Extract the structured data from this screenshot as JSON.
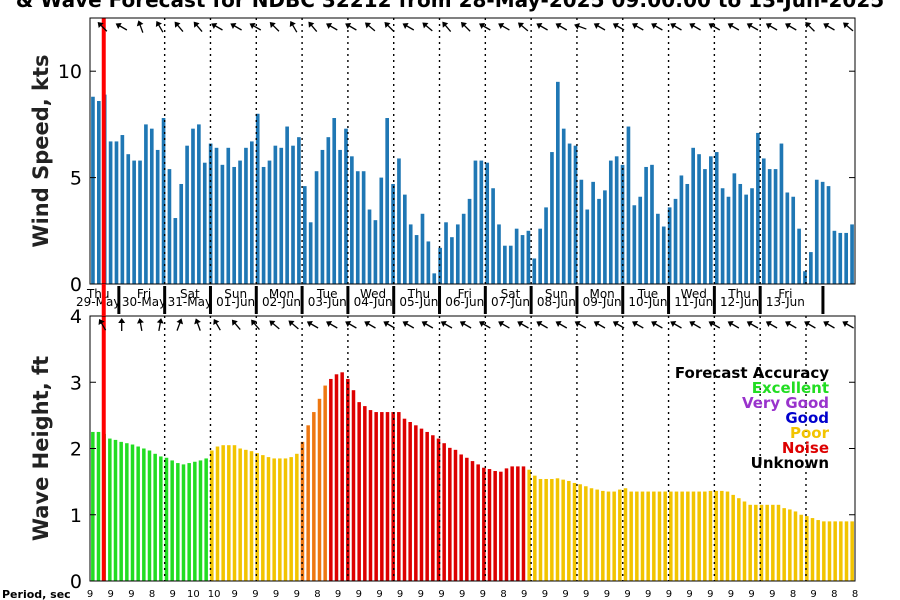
{
  "title": "& Wave Forecast for NDBC 32212 from 28-May-2025 09:00:00 to 13-Jun-2025",
  "period_label": "Period, sec",
  "colors": {
    "wind_bar": "#1f77b4",
    "now_line": "#ff0000",
    "excellent": "#22dd22",
    "very_good": "#9933cc",
    "good": "#0000cc",
    "poor": "#f2c400",
    "noise": "#dd0000",
    "unknown": "#000000",
    "orange": "#ee7711"
  },
  "legend": {
    "title": "Forecast Accuracy",
    "items": [
      {
        "label": "Excellent",
        "color": "#22dd22"
      },
      {
        "label": "Very Good",
        "color": "#9933cc"
      },
      {
        "label": "Good",
        "color": "#0000cc"
      },
      {
        "label": "Poor",
        "color": "#f2c400"
      },
      {
        "label": "Noise",
        "color": "#dd0000"
      },
      {
        "label": "Unknown",
        "color": "#000000"
      }
    ]
  },
  "chart_data": [
    {
      "type": "bar",
      "panel": "wind",
      "ylabel": "Wind Speed, kts",
      "ylim": [
        0,
        12.5
      ],
      "yticks": [
        0,
        5,
        10
      ],
      "xlim": [
        0,
        16.7
      ],
      "grid": "vertical dotted at day boundaries",
      "now_x": 0.3,
      "values": [
        8.8,
        8.6,
        8.9,
        6.7,
        6.7,
        7.0,
        6.1,
        5.8,
        5.8,
        7.5,
        7.3,
        6.3,
        7.8,
        5.4,
        3.1,
        4.7,
        6.5,
        7.3,
        7.5,
        5.7,
        6.6,
        6.4,
        5.6,
        6.4,
        5.5,
        5.8,
        6.4,
        6.7,
        8.0,
        5.5,
        5.8,
        6.5,
        6.4,
        7.4,
        6.5,
        6.9,
        4.6,
        2.9,
        5.3,
        6.3,
        6.9,
        7.8,
        6.3,
        7.3,
        6.0,
        5.3,
        5.3,
        3.5,
        3.0,
        5.0,
        7.8,
        4.7,
        5.9,
        4.2,
        2.8,
        2.3,
        3.3,
        2.0,
        0.5,
        1.7,
        2.9,
        2.2,
        2.8,
        3.3,
        4.0,
        5.8,
        5.8,
        5.7,
        4.5,
        2.8,
        1.8,
        1.8,
        2.6,
        2.3,
        2.5,
        1.2,
        2.6,
        3.6,
        6.2,
        9.5,
        7.3,
        6.6,
        6.5,
        4.9,
        3.5,
        4.8,
        4.0,
        4.4,
        5.8,
        6.0,
        5.6,
        7.4,
        3.7,
        4.1,
        5.5,
        5.6,
        3.3,
        2.7,
        3.6,
        4.0,
        5.1,
        4.7,
        6.4,
        6.1,
        5.4,
        6.0,
        6.2,
        4.5,
        4.1,
        5.2,
        4.7,
        4.2,
        4.5,
        7.1,
        5.9,
        5.4,
        5.4,
        6.6,
        4.3,
        4.1,
        2.6,
        0.6,
        1.5,
        4.9,
        4.8,
        4.6,
        2.5,
        2.4,
        2.4,
        2.8
      ]
    },
    {
      "type": "bar",
      "panel": "wave",
      "ylabel": "Wave Height, ft",
      "ylim": [
        0,
        4
      ],
      "yticks": [
        0,
        1,
        2,
        3,
        4
      ],
      "xlim": [
        0,
        16.7
      ],
      "grid": "vertical dotted at day boundaries",
      "now_x": 0.3,
      "values": [
        2.25,
        2.25,
        2.22,
        2.15,
        2.13,
        2.1,
        2.08,
        2.06,
        2.03,
        2.0,
        1.97,
        1.92,
        1.88,
        1.86,
        1.82,
        1.78,
        1.76,
        1.78,
        1.8,
        1.82,
        1.85,
        1.97,
        2.03,
        2.05,
        2.05,
        2.05,
        2.0,
        1.98,
        1.96,
        1.93,
        1.9,
        1.87,
        1.85,
        1.85,
        1.85,
        1.87,
        1.92,
        2.1,
        2.35,
        2.55,
        2.75,
        2.95,
        3.05,
        3.12,
        3.15,
        3.05,
        2.88,
        2.7,
        2.64,
        2.58,
        2.55,
        2.55,
        2.55,
        2.55,
        2.55,
        2.45,
        2.4,
        2.35,
        2.3,
        2.25,
        2.2,
        2.15,
        2.08,
        2.01,
        1.98,
        1.91,
        1.86,
        1.81,
        1.76,
        1.71,
        1.69,
        1.66,
        1.65,
        1.7,
        1.73,
        1.73,
        1.73,
        1.68,
        1.59,
        1.54,
        1.54,
        1.54,
        1.55,
        1.53,
        1.51,
        1.48,
        1.46,
        1.43,
        1.4,
        1.38,
        1.36,
        1.35,
        1.35,
        1.38,
        1.4,
        1.35,
        1.35,
        1.35,
        1.35,
        1.35,
        1.35,
        1.35,
        1.35,
        1.35,
        1.35,
        1.35,
        1.35,
        1.35,
        1.35,
        1.36,
        1.36,
        1.36,
        1.35,
        1.3,
        1.25,
        1.2,
        1.15,
        1.15,
        1.15,
        1.15,
        1.15,
        1.15,
        1.1,
        1.08,
        1.05,
        1.0,
        0.98,
        0.95,
        0.92,
        0.9,
        0.9,
        0.9,
        0.9,
        0.9,
        0.9
      ],
      "color_runs": [
        {
          "from": 0,
          "to": 20,
          "color": "#22dd22"
        },
        {
          "from": 21,
          "to": 36,
          "color": "#f2c400"
        },
        {
          "from": 37,
          "to": 41,
          "color": "#ee7711"
        },
        {
          "from": 42,
          "to": 76,
          "color": "#dd0000"
        },
        {
          "from": 77,
          "to": 200,
          "color": "#f2c400"
        }
      ]
    }
  ],
  "days": [
    {
      "day": "Thu",
      "date": "29-May",
      "x": 0
    },
    {
      "day": "Fri",
      "date": "30-May",
      "x": 1
    },
    {
      "day": "Sat",
      "date": "31-May",
      "x": 2
    },
    {
      "day": "Sun",
      "date": "01-Jun",
      "x": 3
    },
    {
      "day": "Mon",
      "date": "02-Jun",
      "x": 4
    },
    {
      "day": "Tue",
      "date": "03-Jun",
      "x": 5
    },
    {
      "day": "Wed",
      "date": "04-Jun",
      "x": 6
    },
    {
      "day": "Thu",
      "date": "05-Jun",
      "x": 7
    },
    {
      "day": "Fri",
      "date": "06-Jun",
      "x": 8
    },
    {
      "day": "Sat",
      "date": "07-Jun",
      "x": 9
    },
    {
      "day": "Sun",
      "date": "08-Jun",
      "x": 10
    },
    {
      "day": "Mon",
      "date": "09-Jun",
      "x": 11
    },
    {
      "day": "Tue",
      "date": "10-Jun",
      "x": 12
    },
    {
      "day": "Wed",
      "date": "11-Jun",
      "x": 13
    },
    {
      "day": "Thu",
      "date": "12-Jun",
      "x": 14
    },
    {
      "day": "Fri",
      "date": "13-Jun",
      "x": 15
    }
  ],
  "periods": [
    "9",
    "9",
    "9",
    "8",
    "9",
    "10",
    "10",
    "9",
    "9",
    "9",
    "9",
    "8",
    "9",
    "9",
    "9",
    "9",
    "9",
    "9",
    "9",
    "9",
    "8",
    "9",
    "9",
    "9",
    "9",
    "9",
    "9",
    "9",
    "9",
    "9",
    "9",
    "9",
    "9",
    "9",
    "8",
    "9",
    "8",
    "8"
  ],
  "wind_arrow_angles": [
    315,
    300,
    340,
    330,
    320,
    320,
    300,
    300,
    300,
    315,
    330,
    320,
    300,
    300,
    310,
    315,
    300,
    310,
    320,
    315,
    300,
    300,
    310,
    300,
    300,
    290,
    300,
    300,
    300,
    300,
    300,
    300,
    300,
    300,
    300,
    300,
    300,
    315,
    300,
    310
  ],
  "wave_arrow_angles": [
    330,
    0,
    350,
    10,
    20,
    340,
    330,
    320,
    320,
    310,
    310,
    300,
    300,
    300,
    300,
    300,
    300,
    300,
    300,
    300,
    300,
    300,
    300,
    300,
    300,
    300,
    300,
    300,
    300,
    300,
    300,
    300,
    300,
    300,
    300,
    300,
    300,
    300,
    300,
    300
  ]
}
